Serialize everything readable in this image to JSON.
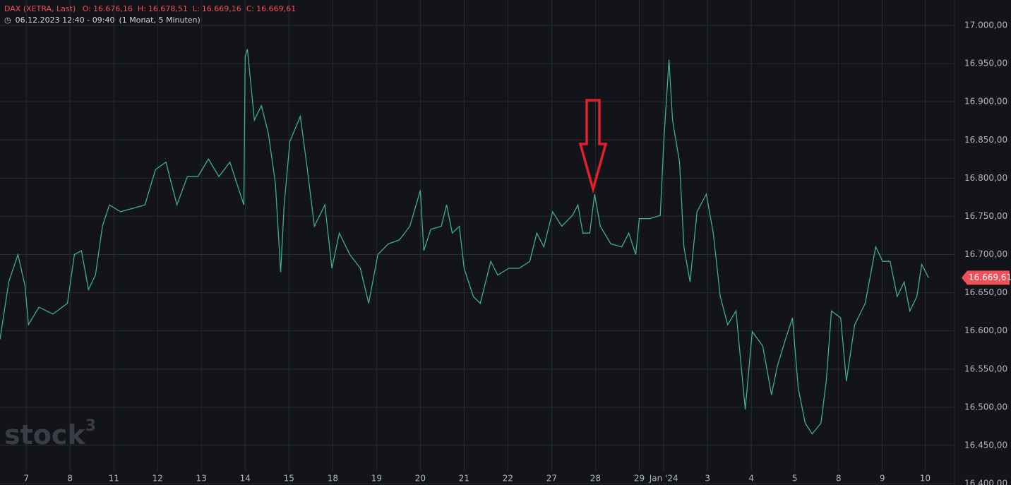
{
  "header": {
    "symbol": "DAX (XETRA, Last)",
    "ohlc": [
      {
        "key": "O:",
        "value": "16.676,16"
      },
      {
        "key": "H:",
        "value": "16.678,51"
      },
      {
        "key": "L:",
        "value": "16.669,16"
      },
      {
        "key": "C:",
        "value": "16.669,61"
      }
    ],
    "range": "06.12.2023 12:40 - 09:40",
    "interval": "(1 Monat, 5 Minuten)"
  },
  "watermark": {
    "text": "stock",
    "sup": "3"
  },
  "chart_data": {
    "type": "line",
    "x": [
      -0.6,
      -0.4,
      -0.19,
      -0.03,
      0.05,
      0.29,
      0.61,
      0.94,
      1.1,
      1.26,
      1.42,
      1.58,
      1.74,
      1.9,
      2.15,
      2.47,
      2.71,
      2.95,
      3.19,
      3.44,
      3.68,
      3.92,
      4.16,
      4.4,
      4.65,
      4.81,
      4.97,
      5.0,
      5.05,
      5.21,
      5.37,
      5.53,
      5.69,
      5.81,
      5.89,
      6.02,
      6.26,
      6.42,
      6.58,
      6.82,
      6.98,
      7.15,
      7.39,
      7.63,
      7.82,
      8.03,
      8.27,
      8.52,
      8.76,
      9.0,
      9.08,
      9.24,
      9.48,
      9.6,
      9.73,
      9.89,
      10.0,
      10.21,
      10.37,
      10.61,
      10.77,
      11.02,
      11.26,
      11.5,
      11.66,
      11.82,
      12.02,
      12.23,
      12.47,
      12.6,
      12.71,
      12.87,
      12.98,
      13.11,
      13.35,
      13.6,
      13.76,
      13.92,
      14.0,
      14.24,
      14.48,
      14.56,
      14.68,
      14.76,
      14.92,
      15.02,
      15.16,
      15.32,
      15.53,
      15.69,
      15.85,
      16.02,
      16.21,
      16.42,
      16.58,
      16.82,
      17.02,
      17.15,
      17.34,
      17.5,
      17.63,
      17.79,
      17.95,
      18.15,
      18.27,
      18.39,
      18.6,
      18.73,
      18.92,
      19.16,
      19.4,
      19.56,
      19.73,
      19.89,
      20.05,
      20.18,
      20.34,
      20.45,
      20.61
    ],
    "series": [
      {
        "name": "DAX",
        "color": "#3fae8c",
        "values": [
          16589,
          16664,
          16700,
          16659,
          16608,
          16631,
          16622,
          16636,
          16700,
          16705,
          16654,
          16673,
          16737,
          16765,
          16756,
          16761,
          16765,
          16811,
          16821,
          16765,
          16802,
          16802,
          16825,
          16802,
          16821,
          16793,
          16765,
          16959,
          16969,
          16876,
          16895,
          16858,
          16793,
          16677,
          16765,
          16848,
          16881,
          16811,
          16737,
          16765,
          16682,
          16728,
          16700,
          16682,
          16636,
          16700,
          16714,
          16719,
          16737,
          16784,
          16705,
          16733,
          16737,
          16765,
          16728,
          16737,
          16682,
          16645,
          16636,
          16691,
          16673,
          16682,
          16682,
          16691,
          16728,
          16710,
          16756,
          16737,
          16751,
          16765,
          16728,
          16728,
          16779,
          16737,
          16714,
          16710,
          16728,
          16700,
          16747,
          16747,
          16751,
          16848,
          16955,
          16876,
          16821,
          16710,
          16664,
          16756,
          16779,
          16728,
          16645,
          16608,
          16626,
          16497,
          16599,
          16580,
          16516,
          16553,
          16589,
          16617,
          16525,
          16479,
          16465,
          16479,
          16534,
          16626,
          16617,
          16534,
          16608,
          16636,
          16710,
          16691,
          16691,
          16645,
          16664,
          16626,
          16645,
          16687,
          16669.61
        ]
      }
    ],
    "xlim": [
      -0.6,
      21.2
    ],
    "xticks": [
      {
        "value": 0,
        "label": "7"
      },
      {
        "value": 1,
        "label": "8"
      },
      {
        "value": 2,
        "label": "11"
      },
      {
        "value": 3,
        "label": "12"
      },
      {
        "value": 4,
        "label": "13"
      },
      {
        "value": 5,
        "label": "14"
      },
      {
        "value": 6,
        "label": "15"
      },
      {
        "value": 7,
        "label": "18"
      },
      {
        "value": 8,
        "label": "19"
      },
      {
        "value": 9,
        "label": "20"
      },
      {
        "value": 10,
        "label": "21"
      },
      {
        "value": 11,
        "label": "22"
      },
      {
        "value": 12,
        "label": "27"
      },
      {
        "value": 13,
        "label": "28"
      },
      {
        "value": 14,
        "label": "29"
      },
      {
        "value": 14.56,
        "label": "Jan '24"
      },
      {
        "value": 15.56,
        "label": "3"
      },
      {
        "value": 16.56,
        "label": "4"
      },
      {
        "value": 17.55,
        "label": "5"
      },
      {
        "value": 18.55,
        "label": "8"
      },
      {
        "value": 19.55,
        "label": "9"
      },
      {
        "value": 20.53,
        "label": "10"
      }
    ],
    "ylim": [
      16400,
      17000
    ],
    "yticks": [
      {
        "value": 16400,
        "label": "16.400,00"
      },
      {
        "value": 16450,
        "label": "16.450,00"
      },
      {
        "value": 16500,
        "label": "16.500,00"
      },
      {
        "value": 16550,
        "label": "16.550,00"
      },
      {
        "value": 16600,
        "label": "16.600,00"
      },
      {
        "value": 16650,
        "label": "16.650,00"
      },
      {
        "value": 16700,
        "label": "16.700,00"
      },
      {
        "value": 16750,
        "label": "16.750,00"
      },
      {
        "value": 16800,
        "label": "16.800,00"
      },
      {
        "value": 16850,
        "label": "16.850,00"
      },
      {
        "value": 16900,
        "label": "16.900,00"
      },
      {
        "value": 16950,
        "label": "16.950,00"
      },
      {
        "value": 17000,
        "label": "17.000,00"
      }
    ],
    "last_price": {
      "value": 16669.61,
      "label": "16.669,61",
      "color": "#f0505a"
    },
    "grid": true
  }
}
